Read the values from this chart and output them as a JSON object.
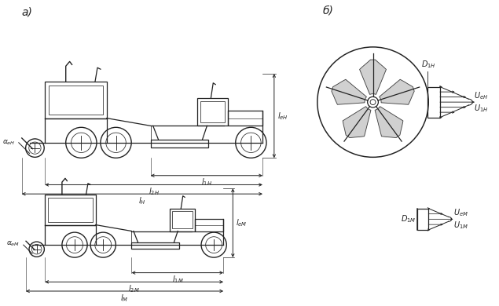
{
  "bg": "#ffffff",
  "lc": "#222222",
  "lw": 0.9,
  "label_a": "а)",
  "label_b": "б)",
  "fan_shade": "#c8c8c8",
  "dim_lc": "#111111"
}
